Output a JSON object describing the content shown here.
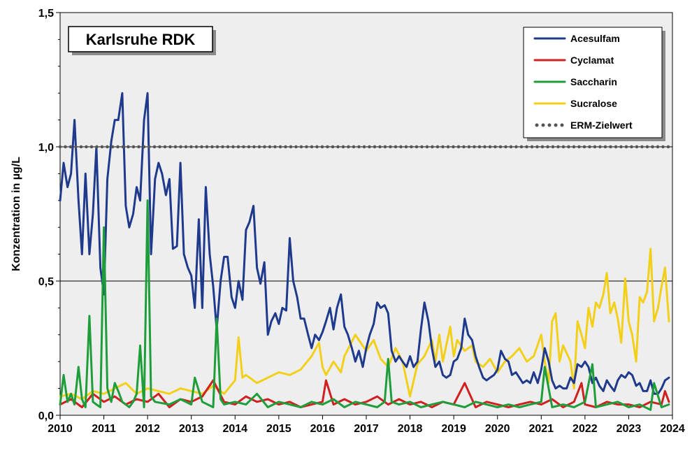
{
  "chart_data": {
    "type": "line",
    "title": "Karlsruhe RDK",
    "xlabel": "",
    "ylabel": "Konzentration in µg/L",
    "xlim": [
      2010,
      2024
    ],
    "ylim": [
      0,
      1.5
    ],
    "x_ticks": [
      "2010",
      "2011",
      "2012",
      "2013",
      "2014",
      "2015",
      "2016",
      "2017",
      "2018",
      "2019",
      "2020",
      "2021",
      "2022",
      "2023",
      "2024"
    ],
    "y_ticks": [
      "0,0",
      "0,5",
      "1,0",
      "1,5"
    ],
    "grid": "horizontal major lines",
    "legend_position": "top-right",
    "series": [
      {
        "name": "Acesulfam",
        "color": "#1f3a8c",
        "x": [
          2010.0,
          2010.08,
          2010.17,
          2010.25,
          2010.33,
          2010.42,
          2010.5,
          2010.58,
          2010.67,
          2010.75,
          2010.83,
          2010.92,
          2011.0,
          2011.08,
          2011.17,
          2011.25,
          2011.33,
          2011.42,
          2011.5,
          2011.58,
          2011.67,
          2011.75,
          2011.83,
          2011.92,
          2012.0,
          2012.08,
          2012.17,
          2012.25,
          2012.33,
          2012.42,
          2012.5,
          2012.58,
          2012.67,
          2012.75,
          2012.83,
          2012.92,
          2013.0,
          2013.08,
          2013.17,
          2013.25,
          2013.33,
          2013.42,
          2013.5,
          2013.58,
          2013.67,
          2013.75,
          2013.83,
          2013.92,
          2014.0,
          2014.08,
          2014.17,
          2014.25,
          2014.33,
          2014.42,
          2014.5,
          2014.58,
          2014.67,
          2014.75,
          2014.83,
          2014.92,
          2015.0,
          2015.08,
          2015.17,
          2015.25,
          2015.33,
          2015.42,
          2015.5,
          2015.58,
          2015.67,
          2015.75,
          2015.83,
          2015.92,
          2016.0,
          2016.08,
          2016.17,
          2016.25,
          2016.33,
          2016.42,
          2016.5,
          2016.58,
          2016.67,
          2016.75,
          2016.83,
          2016.92,
          2017.0,
          2017.08,
          2017.17,
          2017.25,
          2017.33,
          2017.42,
          2017.5,
          2017.58,
          2017.67,
          2017.75,
          2017.83,
          2017.92,
          2018.0,
          2018.08,
          2018.17,
          2018.25,
          2018.33,
          2018.42,
          2018.5,
          2018.58,
          2018.67,
          2018.75,
          2018.83,
          2018.92,
          2019.0,
          2019.08,
          2019.17,
          2019.25,
          2019.33,
          2019.42,
          2019.5,
          2019.58,
          2019.67,
          2019.75,
          2019.83,
          2019.92,
          2020.0,
          2020.08,
          2020.17,
          2020.25,
          2020.33,
          2020.42,
          2020.5,
          2020.58,
          2020.67,
          2020.75,
          2020.83,
          2020.92,
          2021.0,
          2021.08,
          2021.17,
          2021.25,
          2021.33,
          2021.42,
          2021.5,
          2021.58,
          2021.67,
          2021.75,
          2021.83,
          2021.92,
          2022.0,
          2022.08,
          2022.17,
          2022.25,
          2022.33,
          2022.42,
          2022.5,
          2022.58,
          2022.67,
          2022.75,
          2022.83,
          2022.92,
          2023.0,
          2023.08,
          2023.17,
          2023.25,
          2023.33,
          2023.42,
          2023.5,
          2023.58,
          2023.67,
          2023.75,
          2023.83,
          2023.92
        ],
        "y": [
          0.8,
          0.94,
          0.85,
          0.9,
          1.1,
          0.8,
          0.6,
          0.9,
          0.6,
          0.75,
          1.0,
          0.55,
          0.45,
          0.88,
          1.02,
          1.1,
          1.1,
          1.2,
          0.78,
          0.7,
          0.75,
          0.85,
          0.8,
          1.1,
          1.2,
          0.6,
          0.88,
          0.94,
          0.9,
          0.82,
          0.88,
          0.62,
          0.63,
          0.94,
          0.6,
          0.55,
          0.52,
          0.4,
          0.73,
          0.4,
          0.85,
          0.6,
          0.48,
          0.32,
          0.5,
          0.59,
          0.59,
          0.44,
          0.4,
          0.5,
          0.43,
          0.69,
          0.72,
          0.78,
          0.55,
          0.49,
          0.57,
          0.3,
          0.35,
          0.38,
          0.34,
          0.4,
          0.39,
          0.66,
          0.5,
          0.44,
          0.36,
          0.36,
          0.3,
          0.25,
          0.3,
          0.28,
          0.31,
          0.35,
          0.4,
          0.32,
          0.4,
          0.45,
          0.33,
          0.3,
          0.25,
          0.2,
          0.24,
          0.18,
          0.25,
          0.3,
          0.34,
          0.42,
          0.4,
          0.41,
          0.38,
          0.24,
          0.2,
          0.22,
          0.2,
          0.18,
          0.22,
          0.18,
          0.2,
          0.32,
          0.42,
          0.35,
          0.25,
          0.18,
          0.2,
          0.15,
          0.14,
          0.15,
          0.2,
          0.21,
          0.25,
          0.36,
          0.3,
          0.28,
          0.22,
          0.18,
          0.14,
          0.13,
          0.14,
          0.15,
          0.17,
          0.24,
          0.21,
          0.2,
          0.15,
          0.16,
          0.14,
          0.12,
          0.13,
          0.12,
          0.16,
          0.12,
          0.17,
          0.25,
          0.2,
          0.13,
          0.1,
          0.11,
          0.1,
          0.1,
          0.14,
          0.12,
          0.19,
          0.18,
          0.2,
          0.18,
          0.12,
          0.14,
          0.11,
          0.09,
          0.13,
          0.11,
          0.09,
          0.13,
          0.15,
          0.14,
          0.16,
          0.15,
          0.11,
          0.12,
          0.09,
          0.09,
          0.13,
          0.08,
          0.08,
          0.1,
          0.13,
          0.14
        ]
      },
      {
        "name": "Cyclamat",
        "color": "#d02020",
        "x": [
          2010.0,
          2010.25,
          2010.5,
          2010.75,
          2011.0,
          2011.25,
          2011.5,
          2011.75,
          2012.0,
          2012.25,
          2012.5,
          2012.75,
          2013.0,
          2013.25,
          2013.5,
          2013.75,
          2014.0,
          2014.25,
          2014.5,
          2014.75,
          2015.0,
          2015.25,
          2015.5,
          2015.75,
          2016.0,
          2016.08,
          2016.25,
          2016.5,
          2016.75,
          2017.0,
          2017.25,
          2017.5,
          2017.75,
          2018.0,
          2018.25,
          2018.5,
          2018.75,
          2019.0,
          2019.25,
          2019.5,
          2019.75,
          2020.0,
          2020.25,
          2020.5,
          2020.75,
          2021.0,
          2021.25,
          2021.5,
          2021.75,
          2021.92,
          2022.0,
          2022.25,
          2022.5,
          2022.75,
          2023.0,
          2023.25,
          2023.5,
          2023.75,
          2023.83,
          2023.92
        ],
        "y": [
          0.04,
          0.06,
          0.03,
          0.08,
          0.05,
          0.07,
          0.04,
          0.06,
          0.05,
          0.08,
          0.03,
          0.06,
          0.05,
          0.07,
          0.13,
          0.05,
          0.04,
          0.07,
          0.05,
          0.06,
          0.04,
          0.05,
          0.03,
          0.04,
          0.05,
          0.13,
          0.04,
          0.06,
          0.04,
          0.05,
          0.07,
          0.04,
          0.06,
          0.04,
          0.05,
          0.03,
          0.05,
          0.04,
          0.12,
          0.03,
          0.05,
          0.04,
          0.03,
          0.04,
          0.05,
          0.04,
          0.06,
          0.03,
          0.05,
          0.12,
          0.04,
          0.03,
          0.05,
          0.04,
          0.04,
          0.03,
          0.05,
          0.04,
          0.09,
          0.05
        ]
      },
      {
        "name": "Saccharin",
        "color": "#1e9e3a",
        "x": [
          2010.0,
          2010.08,
          2010.17,
          2010.25,
          2010.33,
          2010.42,
          2010.5,
          2010.58,
          2010.67,
          2010.75,
          2010.83,
          2010.92,
          2011.0,
          2011.08,
          2011.17,
          2011.25,
          2011.33,
          2011.42,
          2011.5,
          2011.58,
          2011.67,
          2011.75,
          2011.83,
          2011.92,
          2012.0,
          2012.08,
          2012.17,
          2012.5,
          2012.75,
          2013.0,
          2013.08,
          2013.25,
          2013.5,
          2013.58,
          2013.67,
          2013.75,
          2014.0,
          2014.25,
          2014.5,
          2014.75,
          2015.0,
          2015.25,
          2015.5,
          2015.75,
          2016.0,
          2016.25,
          2016.5,
          2016.75,
          2017.0,
          2017.25,
          2017.42,
          2017.5,
          2017.58,
          2017.75,
          2018.0,
          2018.25,
          2018.5,
          2018.75,
          2019.0,
          2019.25,
          2019.5,
          2019.75,
          2020.0,
          2020.25,
          2020.5,
          2020.75,
          2021.0,
          2021.08,
          2021.25,
          2021.5,
          2021.75,
          2022.0,
          2022.17,
          2022.25,
          2022.5,
          2022.75,
          2023.0,
          2023.25,
          2023.5,
          2023.58,
          2023.75,
          2023.92
        ],
        "y": [
          0.04,
          0.15,
          0.05,
          0.08,
          0.04,
          0.18,
          0.06,
          0.03,
          0.37,
          0.05,
          0.04,
          0.03,
          0.7,
          0.1,
          0.05,
          0.12,
          0.09,
          0.05,
          0.04,
          0.03,
          0.05,
          0.08,
          0.26,
          0.03,
          0.8,
          0.07,
          0.05,
          0.04,
          0.06,
          0.04,
          0.14,
          0.05,
          0.03,
          0.36,
          0.06,
          0.04,
          0.05,
          0.04,
          0.08,
          0.03,
          0.05,
          0.04,
          0.03,
          0.05,
          0.04,
          0.06,
          0.03,
          0.05,
          0.04,
          0.03,
          0.05,
          0.21,
          0.05,
          0.04,
          0.05,
          0.03,
          0.04,
          0.05,
          0.04,
          0.03,
          0.05,
          0.04,
          0.03,
          0.04,
          0.03,
          0.04,
          0.05,
          0.18,
          0.03,
          0.04,
          0.03,
          0.05,
          0.19,
          0.03,
          0.04,
          0.05,
          0.03,
          0.04,
          0.02,
          0.12,
          0.03,
          0.04
        ]
      },
      {
        "name": "Sucralose",
        "color": "#f2d01a",
        "x": [
          2010.0,
          2010.25,
          2010.5,
          2010.75,
          2011.0,
          2011.25,
          2011.5,
          2011.75,
          2012.0,
          2012.25,
          2012.5,
          2012.75,
          2013.0,
          2013.25,
          2013.5,
          2013.75,
          2014.0,
          2014.08,
          2014.17,
          2014.25,
          2014.5,
          2014.75,
          2015.0,
          2015.25,
          2015.5,
          2015.75,
          2015.92,
          2016.0,
          2016.08,
          2016.25,
          2016.42,
          2016.5,
          2016.75,
          2016.83,
          2017.0,
          2017.17,
          2017.33,
          2017.5,
          2017.67,
          2017.83,
          2018.0,
          2018.17,
          2018.33,
          2018.5,
          2018.58,
          2018.67,
          2018.75,
          2018.92,
          2019.0,
          2019.08,
          2019.25,
          2019.42,
          2019.5,
          2019.67,
          2019.83,
          2020.0,
          2020.17,
          2020.33,
          2020.5,
          2020.67,
          2020.83,
          2021.0,
          2021.08,
          2021.17,
          2021.25,
          2021.33,
          2021.42,
          2021.5,
          2021.67,
          2021.75,
          2021.83,
          2021.92,
          2022.0,
          2022.08,
          2022.17,
          2022.25,
          2022.33,
          2022.42,
          2022.5,
          2022.58,
          2022.67,
          2022.75,
          2022.83,
          2022.92,
          2023.0,
          2023.08,
          2023.17,
          2023.25,
          2023.33,
          2023.42,
          2023.5,
          2023.58,
          2023.67,
          2023.75,
          2023.83,
          2023.92
        ],
        "y": [
          0.07,
          0.08,
          0.06,
          0.09,
          0.08,
          0.1,
          0.12,
          0.08,
          0.1,
          0.09,
          0.08,
          0.1,
          0.09,
          0.08,
          0.11,
          0.08,
          0.13,
          0.29,
          0.14,
          0.15,
          0.12,
          0.14,
          0.16,
          0.15,
          0.17,
          0.22,
          0.27,
          0.18,
          0.15,
          0.2,
          0.16,
          0.22,
          0.3,
          0.28,
          0.24,
          0.28,
          0.21,
          0.18,
          0.25,
          0.2,
          0.07,
          0.19,
          0.22,
          0.28,
          0.2,
          0.3,
          0.2,
          0.33,
          0.22,
          0.28,
          0.24,
          0.26,
          0.2,
          0.18,
          0.21,
          0.16,
          0.2,
          0.22,
          0.25,
          0.2,
          0.22,
          0.3,
          0.2,
          0.12,
          0.35,
          0.38,
          0.2,
          0.26,
          0.2,
          0.1,
          0.35,
          0.3,
          0.25,
          0.4,
          0.33,
          0.42,
          0.4,
          0.45,
          0.53,
          0.38,
          0.42,
          0.36,
          0.27,
          0.51,
          0.35,
          0.3,
          0.2,
          0.44,
          0.42,
          0.46,
          0.62,
          0.35,
          0.4,
          0.48,
          0.55,
          0.35
        ]
      },
      {
        "name": "ERM-Zielwert",
        "color": "#555555",
        "style": "dotted",
        "x": [
          2010,
          2024
        ],
        "y": [
          1.0,
          1.0
        ]
      }
    ]
  }
}
